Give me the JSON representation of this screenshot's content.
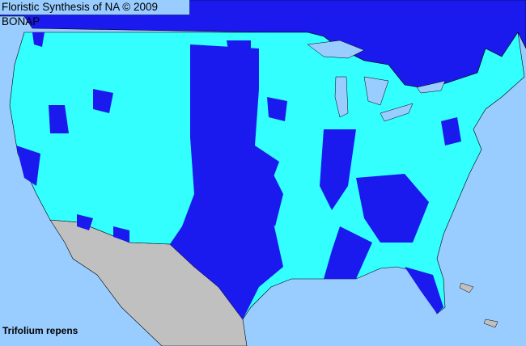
{
  "header": {
    "title": "Floristic Synthesis of NA © 2009 BONAP"
  },
  "map": {
    "species": "Trifolium repens",
    "colors": {
      "ocean": "#99ccff",
      "present_county": "#33ffff",
      "present_state_not_county": "#1a1aee",
      "canada": "#1a1aee",
      "mexico": "#c0c0c0",
      "lakes": "#99ccff",
      "borders": "#000000"
    }
  }
}
